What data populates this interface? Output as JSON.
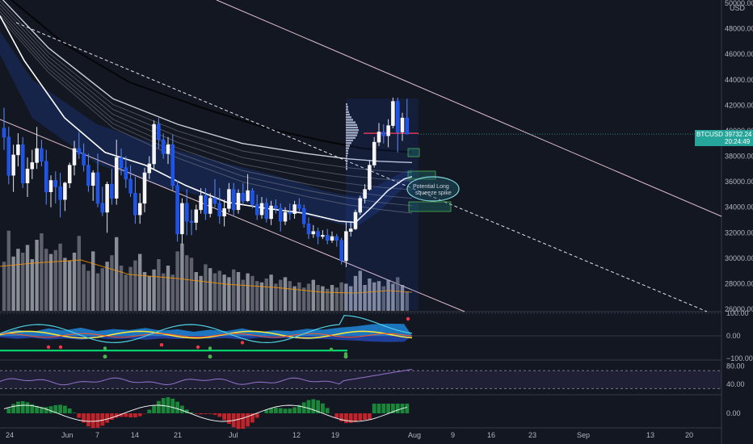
{
  "chart_data": {
    "type": "candlestick",
    "symbol": "BTCUSD",
    "currency": "USD",
    "last_price": "39732.24",
    "countdown": "20:24:49",
    "annotation": "Potential Long squeeze spike",
    "ylim": [
      26000,
      50000
    ],
    "y_ticks": [
      26000,
      28000,
      30000,
      32000,
      34000,
      36000,
      38000,
      40000,
      42000,
      44000,
      46000,
      48000,
      50000
    ],
    "y_tick_labels": [
      "26000.00",
      "28000.00",
      "30000.00",
      "32000.00",
      "34000.00",
      "36000.00",
      "38000.00",
      "40000.00",
      "42000.00",
      "44000.00",
      "46000.00",
      "48000.00",
      "50000.00"
    ],
    "x_ticks": [
      "24",
      "Jun",
      "7",
      "14",
      "21",
      "Jul",
      "12",
      "19",
      "Aug",
      "9",
      "16",
      "23",
      "Sep",
      "13",
      "20"
    ],
    "candles": [
      [
        40200,
        41800,
        38500,
        39500
      ],
      [
        39500,
        40300,
        35800,
        36500
      ],
      [
        36500,
        38900,
        35200,
        38100
      ],
      [
        38100,
        39800,
        37200,
        38900
      ],
      [
        38900,
        39500,
        35500,
        35900
      ],
      [
        35900,
        37900,
        34800,
        37000
      ],
      [
        37000,
        38500,
        36200,
        37500
      ],
      [
        37500,
        40300,
        37000,
        38600
      ],
      [
        38600,
        39300,
        37200,
        37600
      ],
      [
        37600,
        38500,
        34200,
        35200
      ],
      [
        35200,
        36500,
        34000,
        36100
      ],
      [
        36100,
        36800,
        34300,
        35600
      ],
      [
        35600,
        36700,
        33200,
        34600
      ],
      [
        34600,
        36000,
        33700,
        35900
      ],
      [
        35900,
        37500,
        35500,
        37300
      ],
      [
        37300,
        39200,
        36500,
        38600
      ],
      [
        38600,
        39900,
        37800,
        38200
      ],
      [
        38200,
        39000,
        36800,
        37300
      ],
      [
        37300,
        38200,
        35200,
        35700
      ],
      [
        35700,
        36900,
        34500,
        36700
      ],
      [
        36700,
        38200,
        34000,
        34300
      ],
      [
        34300,
        35600,
        33300,
        33600
      ],
      [
        33600,
        36000,
        32000,
        35800
      ],
      [
        35800,
        37000,
        34200,
        34700
      ],
      [
        34700,
        39300,
        34200,
        37900
      ],
      [
        37900,
        38600,
        36500,
        37100
      ],
      [
        37100,
        38000,
        35500,
        36200
      ],
      [
        36200,
        37300,
        34800,
        35100
      ],
      [
        35100,
        36400,
        32700,
        33400
      ],
      [
        33400,
        35100,
        32700,
        34300
      ],
      [
        34300,
        37100,
        33600,
        36700
      ],
      [
        36700,
        38000,
        36200,
        37400
      ],
      [
        37400,
        40800,
        37000,
        40500
      ],
      [
        40500,
        41000,
        38600,
        39300
      ],
      [
        39300,
        39800,
        37800,
        38200
      ],
      [
        38200,
        39500,
        37400,
        38900
      ],
      [
        38900,
        39700,
        35300,
        35700
      ],
      [
        35700,
        36100,
        31300,
        31900
      ],
      [
        31900,
        34700,
        31100,
        34300
      ],
      [
        34300,
        35400,
        31800,
        32900
      ],
      [
        32900,
        33800,
        31800,
        32800
      ],
      [
        32800,
        34200,
        32200,
        33800
      ],
      [
        33800,
        35500,
        33500,
        34900
      ],
      [
        34900,
        35500,
        33000,
        33500
      ],
      [
        33500,
        35100,
        33200,
        34700
      ],
      [
        34700,
        36200,
        34000,
        34300
      ],
      [
        34300,
        35500,
        32700,
        33300
      ],
      [
        33300,
        34600,
        32500,
        33900
      ],
      [
        33900,
        35900,
        33600,
        35400
      ],
      [
        35400,
        35900,
        33300,
        33800
      ],
      [
        33800,
        35400,
        33500,
        35100
      ],
      [
        35100,
        35900,
        34200,
        34500
      ],
      [
        34500,
        36600,
        34400,
        35300
      ],
      [
        35300,
        35500,
        33900,
        34200
      ],
      [
        34200,
        35000,
        33000,
        33400
      ],
      [
        33400,
        34800,
        33100,
        34300
      ],
      [
        34300,
        34700,
        32800,
        33100
      ],
      [
        33100,
        34500,
        32600,
        34100
      ],
      [
        34100,
        34600,
        33500,
        33900
      ],
      [
        33900,
        34300,
        32100,
        32900
      ],
      [
        32900,
        34000,
        32600,
        33600
      ],
      [
        33600,
        34300,
        33000,
        33500
      ],
      [
        33500,
        34500,
        33100,
        34200
      ],
      [
        34200,
        34700,
        33600,
        33900
      ],
      [
        33900,
        34200,
        32400,
        32700
      ],
      [
        32700,
        33200,
        31500,
        31900
      ],
      [
        31900,
        32600,
        31600,
        32100
      ],
      [
        32100,
        32400,
        31100,
        31700
      ],
      [
        31700,
        32200,
        31500,
        31800
      ],
      [
        31800,
        32300,
        31100,
        31400
      ],
      [
        31400,
        32100,
        31200,
        31700
      ],
      [
        31700,
        31900,
        30900,
        31400
      ],
      [
        31400,
        31600,
        29500,
        29800
      ],
      [
        29800,
        32800,
        29300,
        32100
      ],
      [
        32100,
        32900,
        31700,
        32300
      ],
      [
        32300,
        33800,
        32200,
        33600
      ],
      [
        33600,
        34900,
        33400,
        34700
      ],
      [
        34700,
        35800,
        34300,
        35400
      ],
      [
        35400,
        37700,
        35300,
        37300
      ],
      [
        37300,
        39500,
        37100,
        39100
      ],
      [
        39100,
        40600,
        38800,
        39900
      ],
      [
        39900,
        40500,
        39000,
        39600
      ],
      [
        39600,
        40900,
        38700,
        40400
      ],
      [
        40400,
        42600,
        40200,
        42300
      ],
      [
        42300,
        42600,
        38300,
        39900
      ],
      [
        39900,
        41400,
        39200,
        41000
      ],
      [
        41000,
        42500,
        39700,
        39732
      ]
    ],
    "volume": [
      38,
      62,
      42,
      48,
      45,
      51,
      40,
      55,
      60,
      48,
      44,
      47,
      52,
      41,
      39,
      45,
      58,
      36,
      31,
      46,
      29,
      33,
      38,
      43,
      57,
      35,
      28,
      34,
      39,
      44,
      30,
      27,
      32,
      40,
      29,
      35,
      28,
      46,
      52,
      43,
      41,
      30,
      27,
      36,
      33,
      29,
      31,
      28,
      26,
      32,
      30,
      24,
      29,
      27,
      23,
      22,
      25,
      28,
      21,
      24,
      26,
      23,
      19,
      22,
      18,
      21,
      24,
      20,
      19,
      17,
      20,
      18,
      22,
      21,
      19,
      27,
      31,
      20,
      25,
      22,
      23,
      19,
      24,
      21,
      26,
      20,
      15
    ],
    "oscillator_ylim": [
      -100,
      100
    ],
    "oscillator_ticks": [
      "100.00",
      "0.00",
      "−100.00"
    ],
    "rsi_ylim": [
      20,
      90
    ],
    "rsi_ticks": [
      "80.00",
      "40.00"
    ],
    "histogram_ticks": [
      "0.00"
    ]
  }
}
